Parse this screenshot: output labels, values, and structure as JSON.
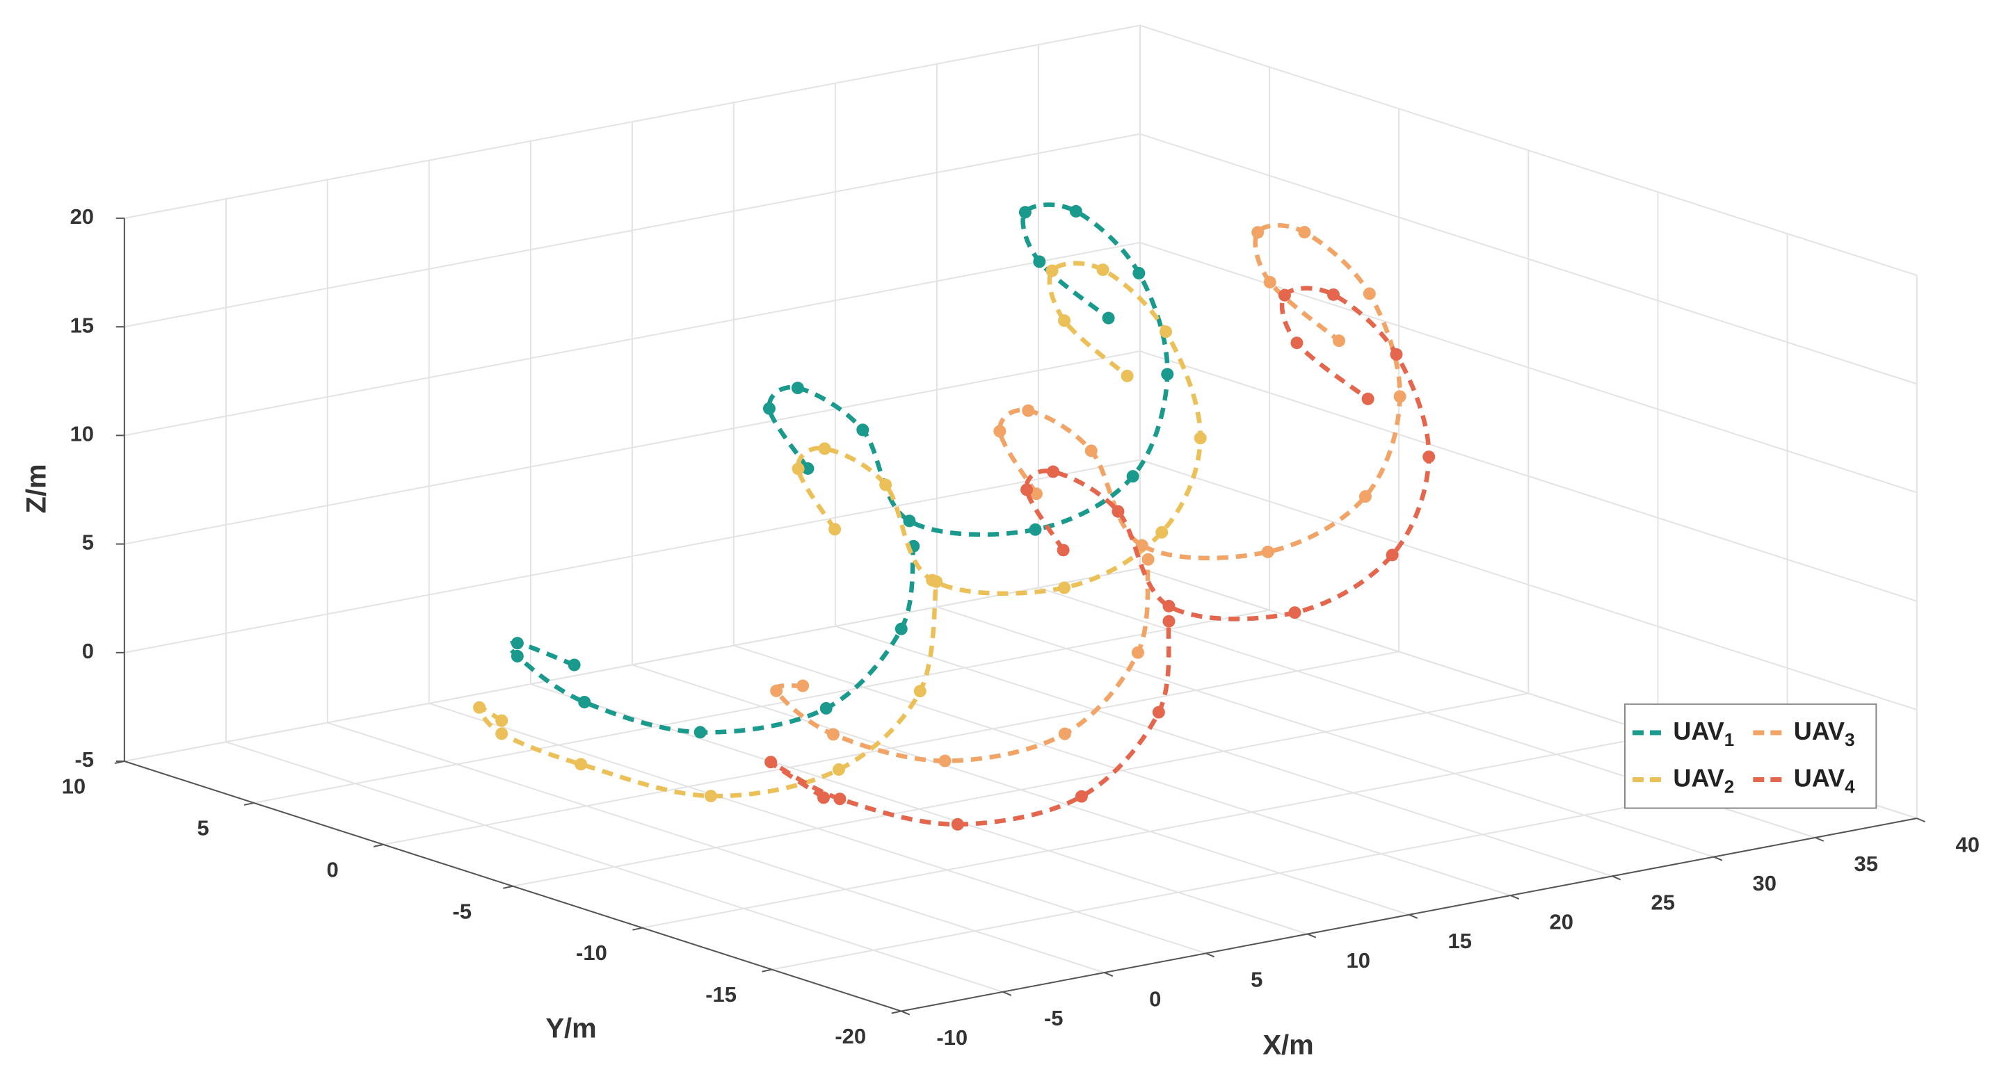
{
  "chart_data": {
    "type": "line3d",
    "xlabel": "X/m",
    "ylabel": "Y/m",
    "zlabel": "Z/m",
    "xlim": [
      -10,
      40
    ],
    "ylim": [
      -20,
      10
    ],
    "zlim": [
      -5,
      20
    ],
    "xticks": [
      -10,
      -5,
      0,
      5,
      10,
      15,
      20,
      25,
      30,
      35,
      40
    ],
    "yticks": [
      -20,
      -15,
      -10,
      -5,
      0,
      5,
      10
    ],
    "zticks": [
      -5,
      0,
      5,
      10,
      15,
      20
    ],
    "grid": true,
    "legend": "lower right",
    "series": [
      {
        "name": "UAV1",
        "color": "#1a9a8c",
        "x": [
          10.9,
          9.0,
          10.4,
          13.6,
          15.9,
          22.1,
          26.9,
          28.6,
          27.2,
          24.1,
          21.6,
          22.3,
          25.7,
          null,
          -0.6,
          -3.4,
          -3.4,
          -0.1,
          5.6,
          11.8,
          15.5,
          16.1
        ],
        "y": [
          0,
          0,
          0,
          0,
          0,
          0,
          0,
          0,
          0,
          0,
          0,
          0,
          0,
          null,
          0,
          0,
          0,
          0,
          0,
          0,
          0,
          0
        ],
        "z": [
          8.6,
          11.7,
          12.4,
          9.9,
          5.3,
          3.8,
          5.4,
          9.8,
          14.7,
          18.1,
          18.5,
          16.1,
          12.9,
          null,
          1.6,
          3.1,
          2.5,
          -0.2,
          -2.6,
          -2.6,
          0.4,
          4.1
        ]
      },
      {
        "name": "UAV2",
        "color": "#ecc058",
        "x": [
          8.4,
          6.6,
          7.9,
          10.9,
          13.2,
          19.7,
          24.5,
          26.4,
          24.7,
          21.6,
          19.1,
          19.7,
          22.8,
          null,
          -8.0,
          -9.1,
          -8.0,
          -4.1,
          2.3,
          8.6,
          12.6,
          13.4
        ],
        "y": [
          -3,
          -3,
          -3,
          -3,
          -3,
          -3,
          -3,
          -3,
          -3,
          -3,
          -3,
          -3,
          -3,
          null,
          -3,
          -3,
          -3,
          -3,
          -3,
          -3,
          -3,
          -3
        ],
        "z": [
          7.4,
          10.5,
          11.2,
          9.0,
          4.2,
          2.7,
          4.4,
          8.4,
          13.6,
          17.0,
          17.4,
          15.0,
          11.9,
          null,
          1.5,
          2.3,
          0.9,
          -1.2,
          -3.8,
          -3.7,
          -0.8,
          4.1
        ]
      },
      {
        "name": "UAV3",
        "color": "#f2a366",
        "x": [
          14.5,
          12.7,
          14.1,
          17.2,
          19.7,
          25.9,
          30.7,
          32.4,
          30.9,
          27.7,
          25.4,
          26.0,
          29.4,
          null,
          3.0,
          1.7,
          4.5,
          10.0,
          15.9,
          19.5,
          20.0
        ],
        "y": [
          -6,
          -6,
          -6,
          -6,
          -6,
          -6,
          -6,
          -6,
          -6,
          -6,
          -6,
          -6,
          -6,
          null,
          -6,
          -6,
          -6,
          -6,
          -6,
          -6,
          -6
        ],
        "z": [
          9.1,
          12.3,
          13.0,
          10.6,
          5.8,
          4.4,
          6.1,
          10.4,
          15.4,
          18.8,
          19.2,
          16.8,
          13.5,
          null,
          2.3,
          2.3,
          -0.2,
          -2.4,
          -2.2,
          0.9,
          5.1
        ]
      },
      {
        "name": "UAV4",
        "color": "#e4664c",
        "x": [
          12.0,
          10.2,
          11.5,
          14.7,
          17.2,
          23.4,
          28.2,
          30.0,
          28.4,
          25.3,
          22.9,
          23.5,
          27.0,
          null,
          0.2,
          -2.4,
          1.0,
          6.8,
          12.9,
          16.7,
          17.2
        ],
        "y": [
          -9,
          -9,
          -9,
          -9,
          -9,
          -9,
          -9,
          -9,
          -9,
          -9,
          -9,
          -9,
          -9,
          null,
          -9,
          -9,
          -9,
          -9,
          -9,
          -9,
          -9
        ],
        "z": [
          8.1,
          11.2,
          11.8,
          9.4,
          4.6,
          3.2,
          5.0,
          9.2,
          14.2,
          17.5,
          17.9,
          15.6,
          12.4,
          null,
          -1.2,
          0.9,
          -1.4,
          -3.6,
          -3.4,
          -0.2,
          3.9
        ]
      }
    ]
  }
}
